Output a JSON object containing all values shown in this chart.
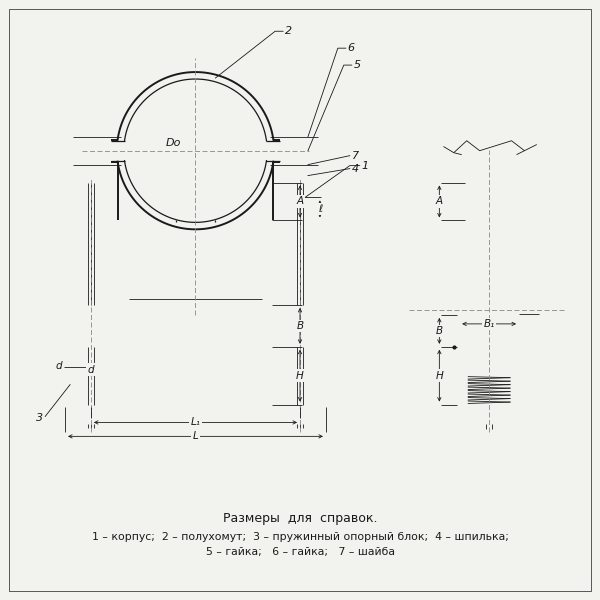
{
  "bg_color": "#f2f2ee",
  "line_color": "#1a1a1a",
  "title_text": "Размеры  для  справок.",
  "legend_line1": "1 – корпус;  2 – полухомут;  3 – пружинный опорный блок;  4 – шпилька;",
  "legend_line2": "5 – гайка;   6 – гайка;   7 – шайба"
}
